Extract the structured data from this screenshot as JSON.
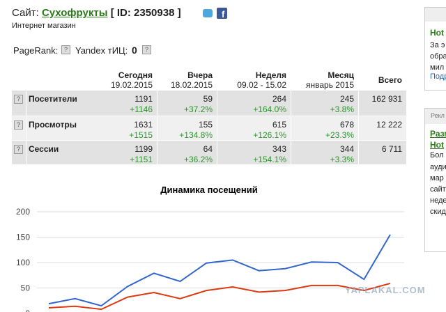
{
  "header": {
    "site_label": "Сайт:",
    "site_name": "Сухофрукты",
    "site_id": "[ ID: 2350938 ]",
    "subtitle": "Интернет магазин",
    "pagerank_label": "PageRank:",
    "tic_label": "Yandex тИЦ:",
    "tic_value": "0"
  },
  "table": {
    "columns": [
      {
        "title": "Сегодня",
        "sub": "19.02.2015"
      },
      {
        "title": "Вчера",
        "sub": "18.02.2015"
      },
      {
        "title": "Неделя",
        "sub": "09.02 - 15.02"
      },
      {
        "title": "Месяц",
        "sub": "январь 2015"
      },
      {
        "title": "Всего"
      }
    ],
    "rows": [
      {
        "label": "Посетители",
        "cells": [
          {
            "value": "1191",
            "change": "+1146"
          },
          {
            "value": "59",
            "change": "+37.2%"
          },
          {
            "value": "264",
            "change": "+164.0%"
          },
          {
            "value": "245",
            "change": "+3.8%"
          }
        ],
        "total": "162 931"
      },
      {
        "label": "Просмотры",
        "cells": [
          {
            "value": "1631",
            "change": "+1515"
          },
          {
            "value": "155",
            "change": "+134.8%"
          },
          {
            "value": "615",
            "change": "+126.1%"
          },
          {
            "value": "678",
            "change": "+23.3%"
          }
        ],
        "total": "12 222"
      },
      {
        "label": "Сессии",
        "cells": [
          {
            "value": "1199",
            "change": "+1151"
          },
          {
            "value": "64",
            "change": "+36.2%"
          },
          {
            "value": "343",
            "change": "+154.1%"
          },
          {
            "value": "344",
            "change": "+3.3%"
          }
        ],
        "total": "6 711"
      }
    ]
  },
  "chart_data": {
    "type": "line",
    "title": "Динамика посещений",
    "categories": [
      null,
      null,
      null,
      null,
      null,
      null,
      null,
      null,
      null,
      null,
      null,
      null,
      null,
      null
    ],
    "series": [
      {
        "color": "#3366cc",
        "values": [
          19,
          29,
          15,
          53,
          79,
          63,
          99,
          105,
          84,
          88,
          101,
          100,
          67,
          155
        ]
      },
      {
        "color": "#dc3912",
        "values": [
          11,
          14,
          8,
          32,
          41,
          29,
          45,
          52,
          42,
          45,
          55,
          55,
          45,
          59
        ]
      }
    ],
    "ylim": [
      0,
      200
    ],
    "yticks": [
      0,
      50,
      100,
      150,
      200
    ],
    "grid": true
  },
  "sidebar": {
    "box1": [
      "Hot",
      "За э",
      "обра",
      "мил",
      "Подр"
    ],
    "box2_header": "Рекл",
    "box2": [
      "Разм",
      "Hot",
      "Бол",
      "ауди",
      "мар",
      "сайт",
      "неде",
      "скид"
    ]
  },
  "watermark": "YAPLAKAL.COM"
}
